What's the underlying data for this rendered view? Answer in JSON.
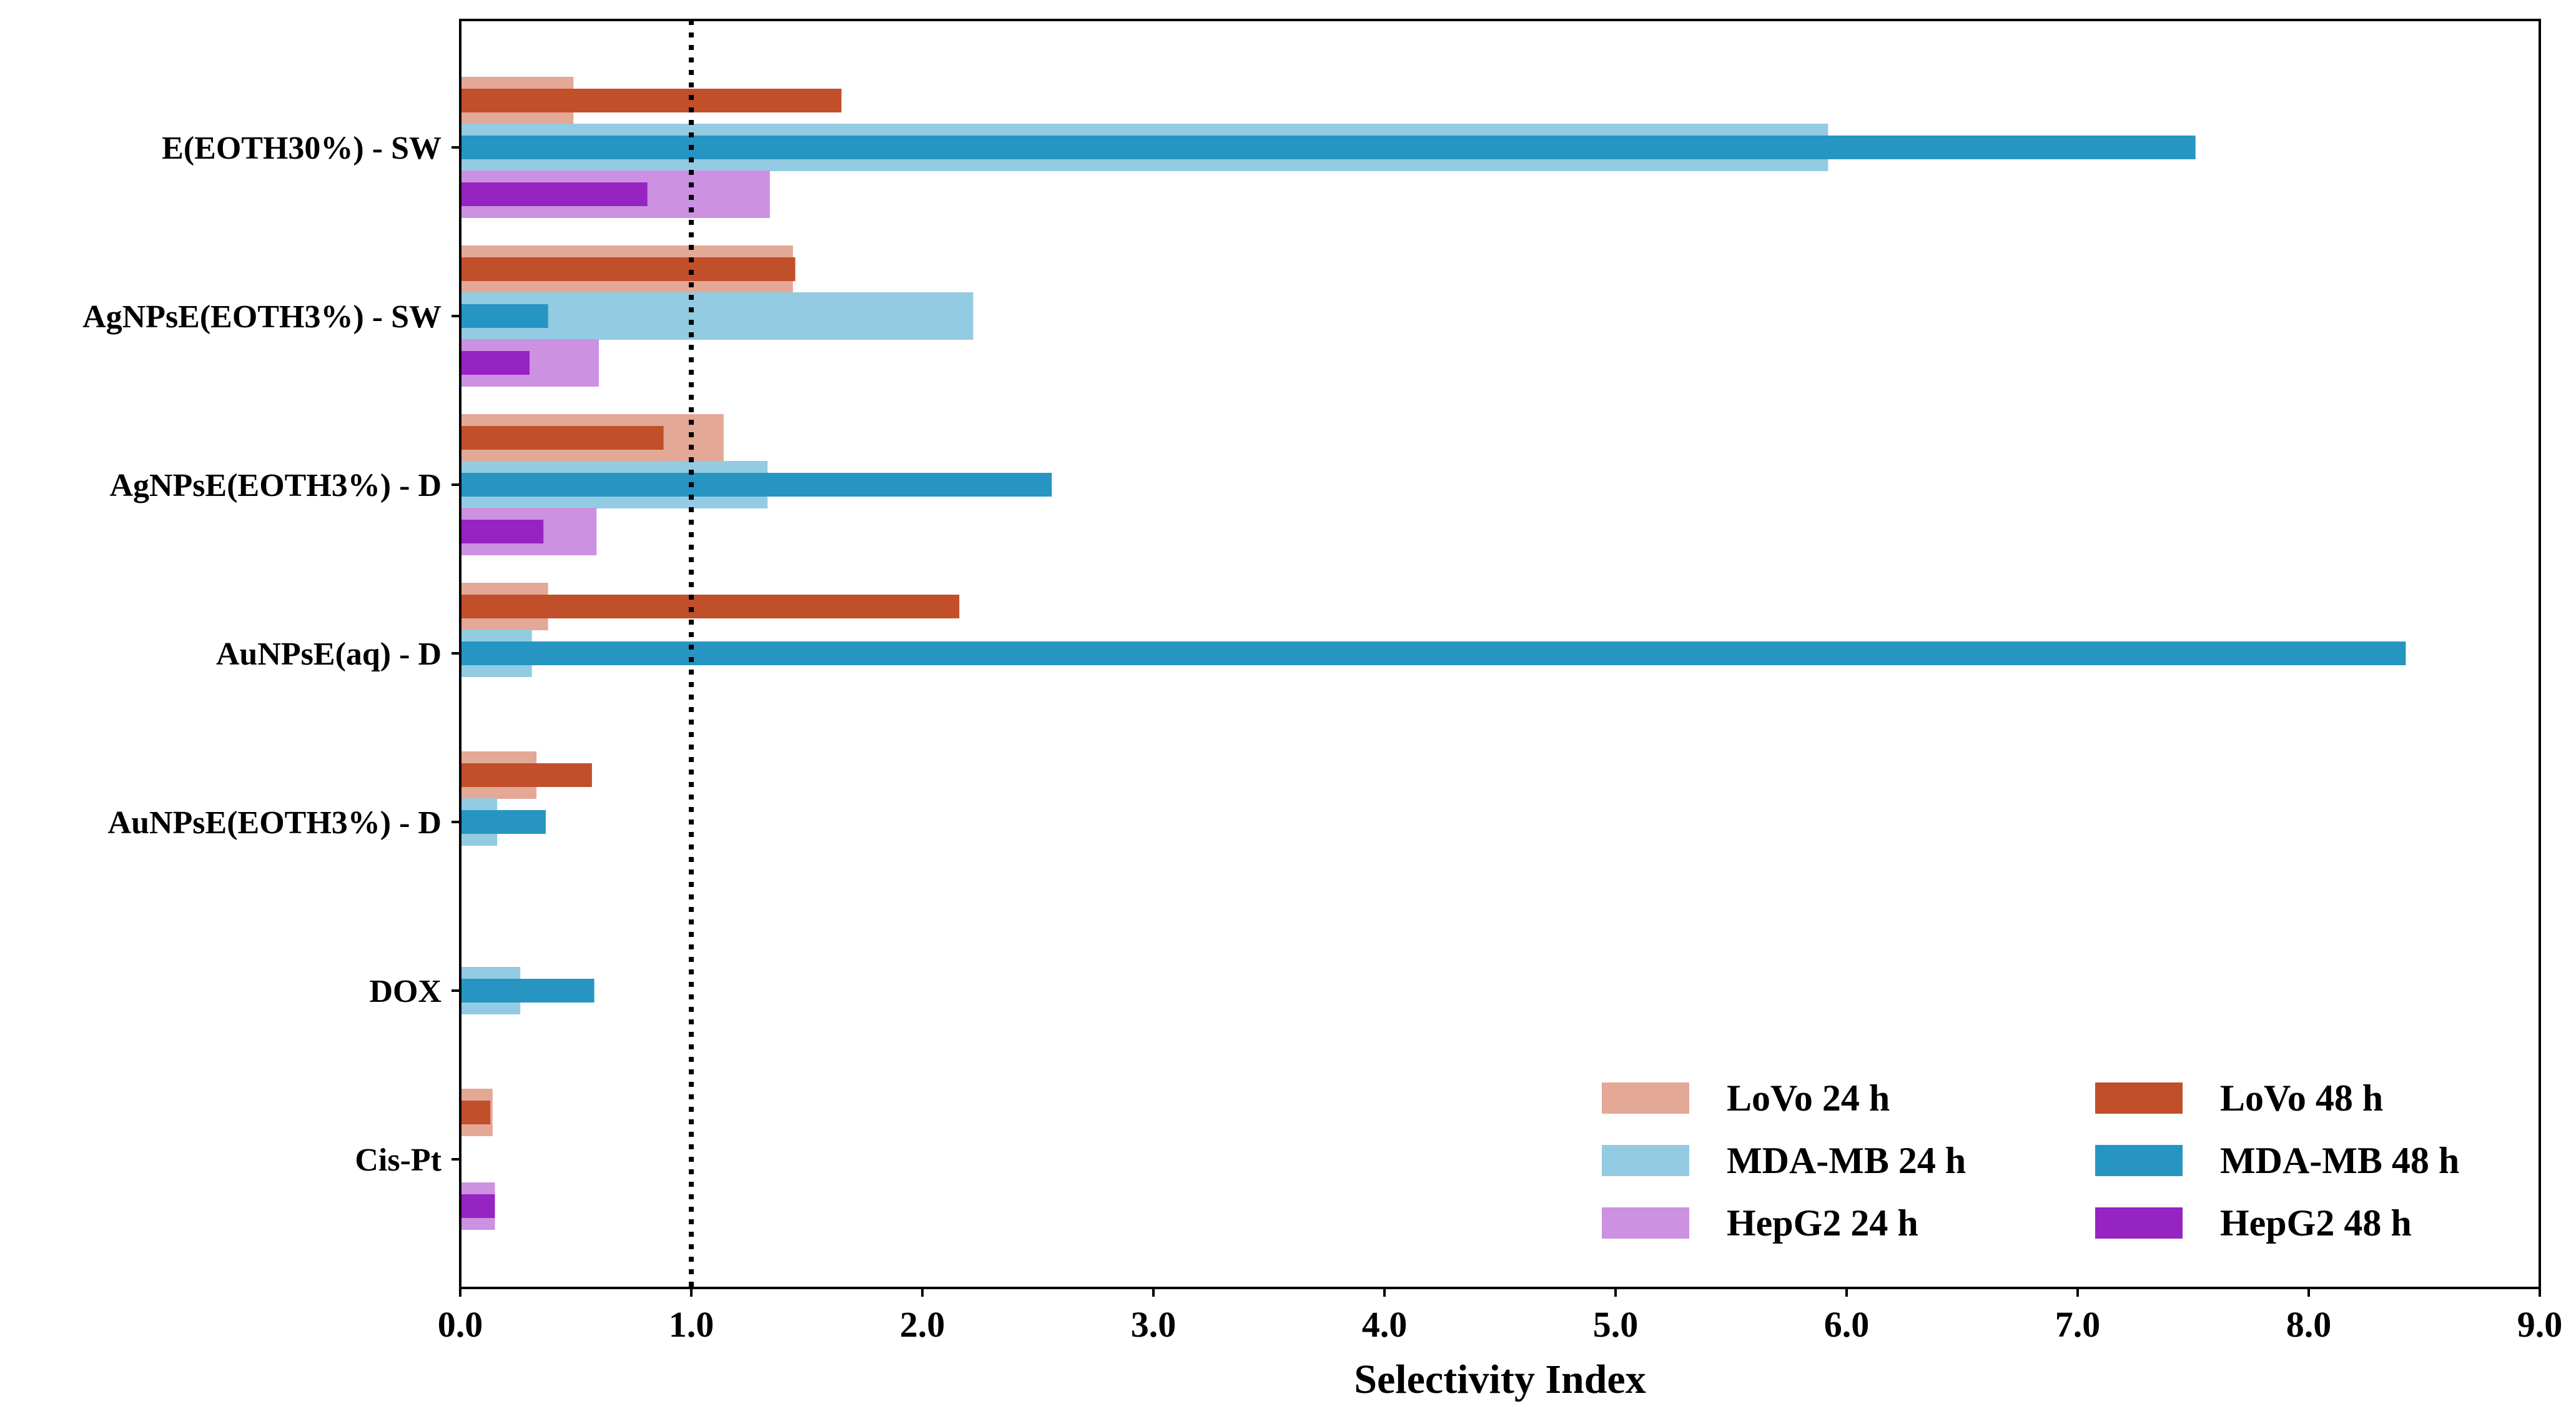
{
  "chart_data": {
    "type": "bar",
    "orientation": "horizontal",
    "title": "",
    "xlabel": "Selectivity Index",
    "ylabel": "",
    "xlim": [
      0,
      9
    ],
    "xticks": [
      "0.0",
      "1.0",
      "2.0",
      "3.0",
      "4.0",
      "5.0",
      "6.0",
      "7.0",
      "8.0",
      "9.0"
    ],
    "grid": false,
    "reference_line": {
      "x": 1.0,
      "style": "dotted"
    },
    "legend_position": "bottom-right",
    "categories": [
      "E(EOTH30%) - SW",
      "AgNPsE(EOTH3%) - SW",
      "AgNPsE(EOTH3%) - D",
      "AuNPsE(aq) - D",
      "AuNPsE(EOTH3%) - D",
      "DOX",
      "Cis-Pt"
    ],
    "series": [
      {
        "name": "LoVo 24 h",
        "color": "#e3a896",
        "values": [
          0.49,
          1.44,
          1.14,
          0.38,
          0.33,
          null,
          0.14
        ]
      },
      {
        "name": "LoVo 48 h",
        "color": "#c14f2a",
        "values": [
          1.65,
          1.45,
          0.88,
          2.16,
          0.57,
          null,
          0.13
        ]
      },
      {
        "name": "MDA-MB 24 h",
        "color": "#93cbe2",
        "values": [
          5.92,
          2.22,
          1.33,
          0.31,
          0.16,
          0.26,
          null
        ]
      },
      {
        "name": "MDA-MB 48 h",
        "color": "#2695c2",
        "values": [
          7.51,
          0.38,
          2.56,
          8.42,
          0.37,
          0.58,
          null
        ]
      },
      {
        "name": "HepG2 24 h",
        "color": "#cc91e0",
        "values": [
          1.34,
          0.6,
          0.59,
          null,
          null,
          null,
          0.15
        ]
      },
      {
        "name": "HepG2 48 h",
        "color": "#9624c2",
        "values": [
          0.81,
          0.3,
          0.36,
          null,
          null,
          null,
          0.15
        ]
      }
    ]
  }
}
